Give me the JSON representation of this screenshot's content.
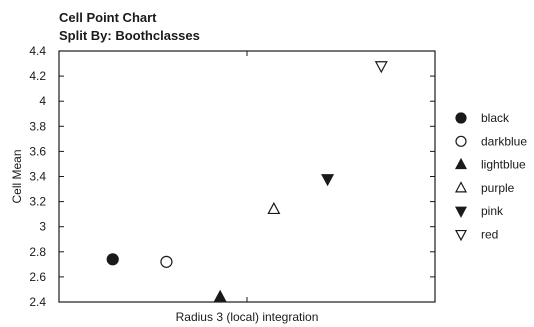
{
  "chart_data": {
    "type": "scatter",
    "title": "Cell Point Chart",
    "subtitle": "Split By: Boothclasses",
    "xlabel": "Radius 3 (local) integration",
    "ylabel": "Cell Mean",
    "ylim": [
      2.4,
      4.4
    ],
    "yticks": [
      "2.4",
      "2.6",
      "2.8",
      "3",
      "3.2",
      "3.4",
      "3.6",
      "3.8",
      "4",
      "4.2",
      "4.4"
    ],
    "grid": false,
    "legend_position": "right",
    "series": [
      {
        "name": "black",
        "marker": "circle-filled",
        "value": 2.74
      },
      {
        "name": "darkblue",
        "marker": "circle-open",
        "value": 2.72
      },
      {
        "name": "lightblue",
        "marker": "triangle-up-filled",
        "value": 2.44
      },
      {
        "name": "purple",
        "marker": "triangle-up-open",
        "value": 3.14
      },
      {
        "name": "pink",
        "marker": "triangle-down-filled",
        "value": 3.38
      },
      {
        "name": "red",
        "marker": "triangle-down-open",
        "value": 4.28
      }
    ]
  }
}
